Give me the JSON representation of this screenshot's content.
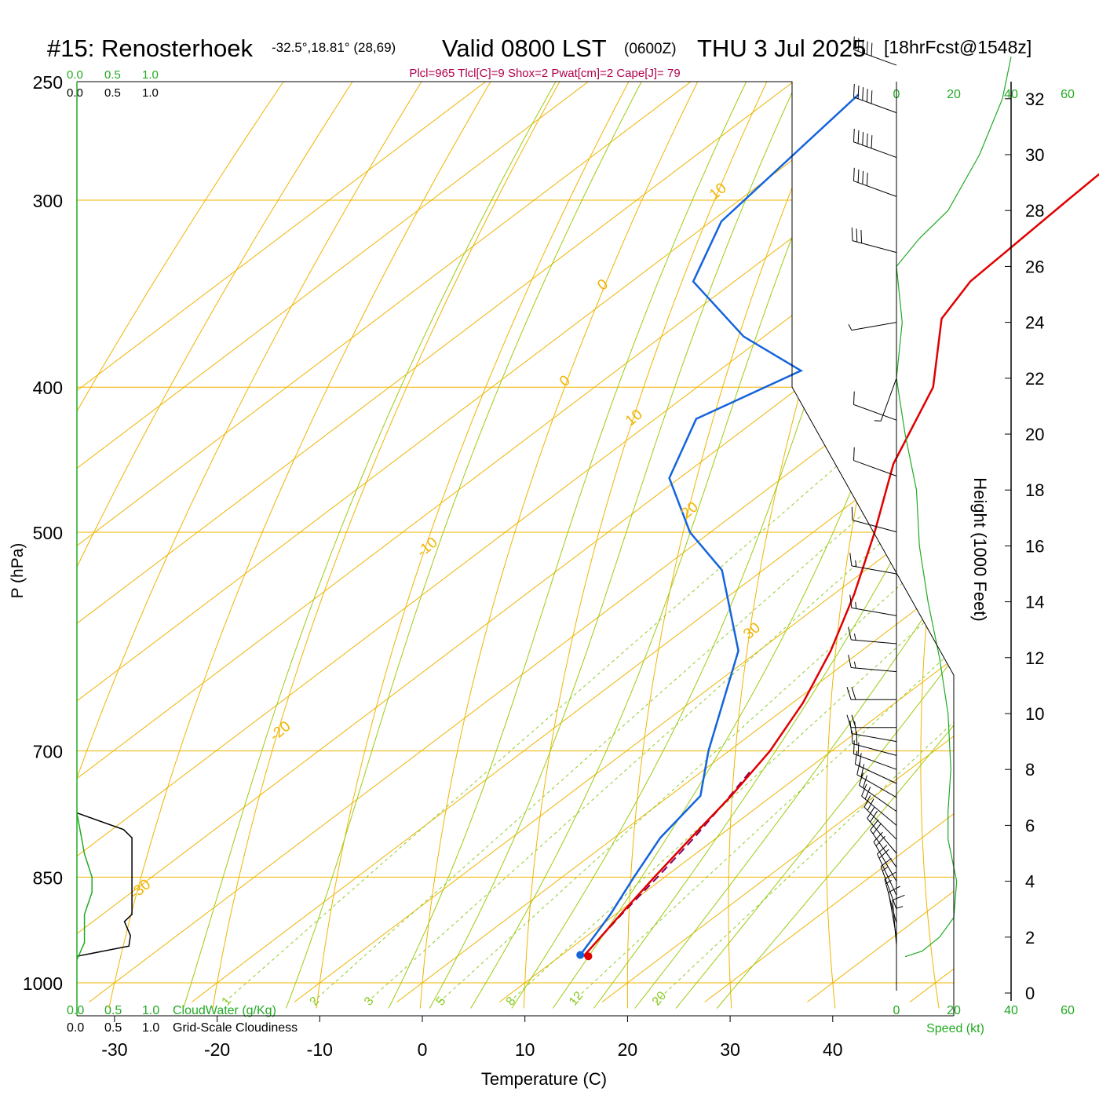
{
  "header": {
    "station": "#15: Renosterhoek",
    "location": "-32.5°,18.81° (28,69)",
    "valid": "Valid 0800 LST",
    "zulu": "(0600Z)",
    "date": "THU 3 Jul 2025",
    "forecast": "[18hrFcst@1548z]",
    "indices": "Plcl=965 Tlcl[C]=9 Shox=2 Pwat[cm]=2 Cape[J]= 79"
  },
  "cloud_scale": {
    "ticks": [
      "0.0",
      "0.5",
      "1.0"
    ],
    "cloudwater_label": "CloudWater (g/Kg)",
    "cloudiness_label": "Grid-Scale Cloudiness"
  },
  "speed_scale": {
    "ticks": [
      "0",
      "20",
      "40",
      "60"
    ],
    "label": "Speed (kt)"
  },
  "colors": {
    "isobar": "#f0b400",
    "dry_adiabat": "#f0b400",
    "moist_adiabat": "#9ccc10",
    "mixing_ratio": "#8ccc28",
    "temperature": "#e00000",
    "dewpoint": "#1464dc",
    "parcel": "#800060",
    "cloud": "#22aa22",
    "indices": "#b0004c"
  },
  "chart_data": {
    "type": "skew-t",
    "xlabel": "Temperature (C)",
    "ylabel": "P (hPa)",
    "y2label": "Height (1000 Feet)",
    "xlim": [
      -33.5,
      36
    ],
    "ylim": [
      1030,
      250
    ],
    "skew_c_per_log_p": 83.8,
    "x_ticks": [
      -30,
      -20,
      -10,
      0,
      10,
      20,
      30,
      40
    ],
    "p_ticks": [
      250,
      300,
      400,
      500,
      700,
      850,
      1000
    ],
    "isobars": [
      250,
      300,
      400,
      500,
      700,
      850,
      1000
    ],
    "height_ticks_kft": [
      0,
      2,
      4,
      6,
      8,
      10,
      12,
      14,
      16,
      18,
      20,
      22,
      24,
      26,
      28,
      30,
      32
    ],
    "dry_adiabat_labels": [
      {
        "text": "10",
        "theta": 10,
        "p": 300
      },
      {
        "text": "0",
        "theta": 0,
        "p": 400
      },
      {
        "text": "-10",
        "theta": -10,
        "p": 520
      },
      {
        "text": "-20",
        "theta": -20,
        "p": 690
      },
      {
        "text": "-30",
        "theta": -30,
        "p": 880
      },
      {
        "text": "0",
        "theta": 0,
        "p": 345
      },
      {
        "text": "10",
        "theta": 10,
        "p": 425
      },
      {
        "text": "20",
        "theta": 20,
        "p": 490
      },
      {
        "text": "30",
        "theta": 30,
        "p": 590
      }
    ],
    "mixing_ratio_labels": [
      "1",
      "2",
      "3",
      "5",
      "8",
      "12",
      "20"
    ],
    "mixing_ratios_gkg": [
      1,
      2,
      3,
      5,
      8,
      12,
      20
    ],
    "temperature": [
      {
        "p": 260,
        "t": -39
      },
      {
        "p": 300,
        "t": -38
      },
      {
        "p": 340,
        "t": -37
      },
      {
        "p": 360,
        "t": -35
      },
      {
        "p": 400,
        "t": -27
      },
      {
        "p": 450,
        "t": -21
      },
      {
        "p": 500,
        "t": -14
      },
      {
        "p": 550,
        "t": -8
      },
      {
        "p": 600,
        "t": -3
      },
      {
        "p": 650,
        "t": 1
      },
      {
        "p": 700,
        "t": 4
      },
      {
        "p": 750,
        "t": 6
      },
      {
        "p": 800,
        "t": 7.5
      },
      {
        "p": 850,
        "t": 9
      },
      {
        "p": 900,
        "t": 10.5
      },
      {
        "p": 960,
        "t": 12.3
      }
    ],
    "dewpoint": [
      {
        "p": 255,
        "t": -72
      },
      {
        "p": 310,
        "t": -69
      },
      {
        "p": 340,
        "t": -64
      },
      {
        "p": 370,
        "t": -52
      },
      {
        "p": 390,
        "t": -42
      },
      {
        "p": 420,
        "t": -46
      },
      {
        "p": 460,
        "t": -41
      },
      {
        "p": 500,
        "t": -32
      },
      {
        "p": 530,
        "t": -24
      },
      {
        "p": 600,
        "t": -12
      },
      {
        "p": 700,
        "t": -2
      },
      {
        "p": 750,
        "t": 3
      },
      {
        "p": 800,
        "t": 4.5
      },
      {
        "p": 850,
        "t": 7
      },
      {
        "p": 900,
        "t": 9.5
      },
      {
        "p": 958,
        "t": 11.8
      }
    ],
    "parcel": [
      {
        "p": 958,
        "t": 12.2
      },
      {
        "p": 900,
        "t": 10.6
      },
      {
        "p": 850,
        "t": 9.3
      },
      {
        "p": 800,
        "t": 7.8
      },
      {
        "p": 760,
        "t": 6.3
      },
      {
        "p": 720,
        "t": 4.6
      }
    ],
    "cloudiness": [
      {
        "p": 770,
        "f": 0
      },
      {
        "p": 790,
        "f": 0.62
      },
      {
        "p": 800,
        "f": 0.73
      },
      {
        "p": 900,
        "f": 0.73
      },
      {
        "p": 910,
        "f": 0.63
      },
      {
        "p": 930,
        "f": 0.71
      },
      {
        "p": 945,
        "f": 0.69
      },
      {
        "p": 960,
        "f": 0
      }
    ],
    "cloudwater": [
      {
        "p": 770,
        "f": 0
      },
      {
        "p": 820,
        "f": 0.1
      },
      {
        "p": 850,
        "f": 0.2
      },
      {
        "p": 870,
        "f": 0.2
      },
      {
        "p": 900,
        "f": 0.1
      },
      {
        "p": 940,
        "f": 0.1
      },
      {
        "p": 965,
        "f": 0
      }
    ],
    "wind_speed": [
      {
        "h": 1.3,
        "s": 3
      },
      {
        "h": 1.5,
        "s": 9
      },
      {
        "h": 2,
        "s": 15
      },
      {
        "h": 2.7,
        "s": 20
      },
      {
        "h": 4,
        "s": 21
      },
      {
        "h": 5.5,
        "s": 18
      },
      {
        "h": 6.5,
        "s": 18
      },
      {
        "h": 8,
        "s": 19
      },
      {
        "h": 10,
        "s": 18
      },
      {
        "h": 12,
        "s": 15
      },
      {
        "h": 14,
        "s": 11
      },
      {
        "h": 16,
        "s": 8
      },
      {
        "h": 18,
        "s": 7
      },
      {
        "h": 20,
        "s": 3
      },
      {
        "h": 22,
        "s": 0
      },
      {
        "h": 24,
        "s": 2
      },
      {
        "h": 26,
        "s": 0
      },
      {
        "h": 27,
        "s": 8
      },
      {
        "h": 28,
        "s": 18
      },
      {
        "h": 30,
        "s": 29
      },
      {
        "h": 32,
        "s": 37
      },
      {
        "h": 33.5,
        "s": 40
      }
    ],
    "wind_barbs": [
      {
        "h": 33.2,
        "dir": 290,
        "spd": 50
      },
      {
        "h": 31.5,
        "dir": 290,
        "spd": 50
      },
      {
        "h": 29.9,
        "dir": 290,
        "spd": 50
      },
      {
        "h": 28.5,
        "dir": 290,
        "spd": 40
      },
      {
        "h": 26.5,
        "dir": 285,
        "spd": 30
      },
      {
        "h": 24,
        "dir": 260,
        "spd": 5
      },
      {
        "h": 22,
        "dir": 200,
        "spd": 5
      },
      {
        "h": 20.5,
        "dir": 290,
        "spd": 10
      },
      {
        "h": 18.5,
        "dir": 290,
        "spd": 10
      },
      {
        "h": 16.5,
        "dir": 285,
        "spd": 10
      },
      {
        "h": 15,
        "dir": 280,
        "spd": 15
      },
      {
        "h": 13.5,
        "dir": 280,
        "spd": 15
      },
      {
        "h": 12.5,
        "dir": 275,
        "spd": 15
      },
      {
        "h": 11.5,
        "dir": 275,
        "spd": 15
      },
      {
        "h": 10.5,
        "dir": 270,
        "spd": 20
      },
      {
        "h": 9.5,
        "dir": 270,
        "spd": 20
      },
      {
        "h": 9,
        "dir": 280,
        "spd": 20
      },
      {
        "h": 8.5,
        "dir": 285,
        "spd": 20
      },
      {
        "h": 8,
        "dir": 290,
        "spd": 20
      },
      {
        "h": 7.5,
        "dir": 295,
        "spd": 20
      },
      {
        "h": 7,
        "dir": 300,
        "spd": 20
      },
      {
        "h": 6.5,
        "dir": 305,
        "spd": 20
      },
      {
        "h": 6,
        "dir": 310,
        "spd": 20
      },
      {
        "h": 5.5,
        "dir": 315,
        "spd": 20
      },
      {
        "h": 5,
        "dir": 320,
        "spd": 20
      },
      {
        "h": 4.5,
        "dir": 325,
        "spd": 20
      },
      {
        "h": 4,
        "dir": 330,
        "spd": 20
      },
      {
        "h": 3.5,
        "dir": 335,
        "spd": 20
      },
      {
        "h": 3,
        "dir": 340,
        "spd": 15
      },
      {
        "h": 2.5,
        "dir": 345,
        "spd": 15
      },
      {
        "h": 2,
        "dir": 350,
        "spd": 10
      },
      {
        "h": 1.7,
        "dir": 355,
        "spd": 10
      },
      {
        "h": 1.4,
        "dir": 0,
        "spd": 5
      }
    ]
  }
}
